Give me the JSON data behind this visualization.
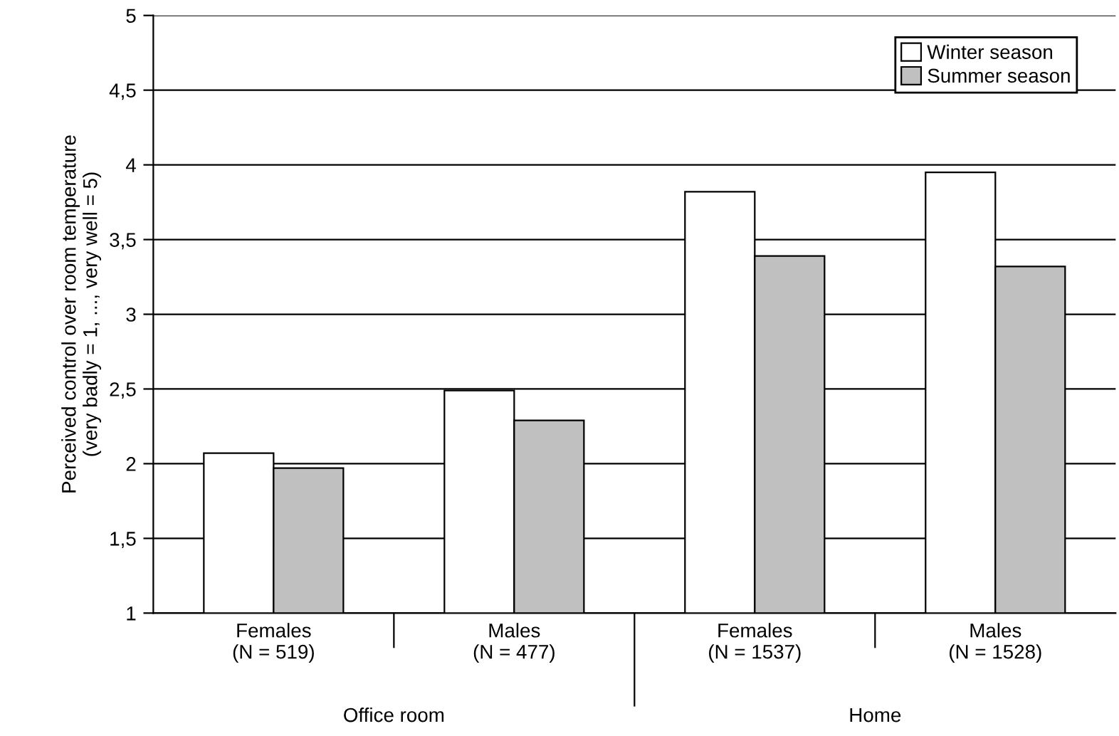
{
  "chart_data": {
    "type": "bar",
    "ylabel": "Perceived control over room temperature\n(very badly = 1, ..., very well = 5)",
    "categories": [
      "Females\n(N = 519)",
      "Males\n(N = 477)",
      "Females\n(N = 1537)",
      "Males\n(N = 1528)"
    ],
    "series": [
      {
        "name": "Winter season",
        "color": "#ffffff",
        "values": [
          2.07,
          2.49,
          3.82,
          3.95
        ]
      },
      {
        "name": "Summer season",
        "color": "#c0c0c0",
        "values": [
          1.97,
          2.29,
          3.39,
          3.32
        ]
      }
    ],
    "annotations": [
      "Office room",
      "Home"
    ],
    "ylim": [
      1,
      5
    ],
    "yticks": [
      1,
      {
        "value": 1.5,
        "label": "1,5"
      },
      2,
      {
        "value": 2.5,
        "label": "2,5"
      },
      3,
      {
        "value": 3.5,
        "label": "3,5"
      },
      4,
      {
        "value": 4.5,
        "label": "4,5"
      },
      5
    ],
    "grid": "y",
    "legend": "top right"
  }
}
